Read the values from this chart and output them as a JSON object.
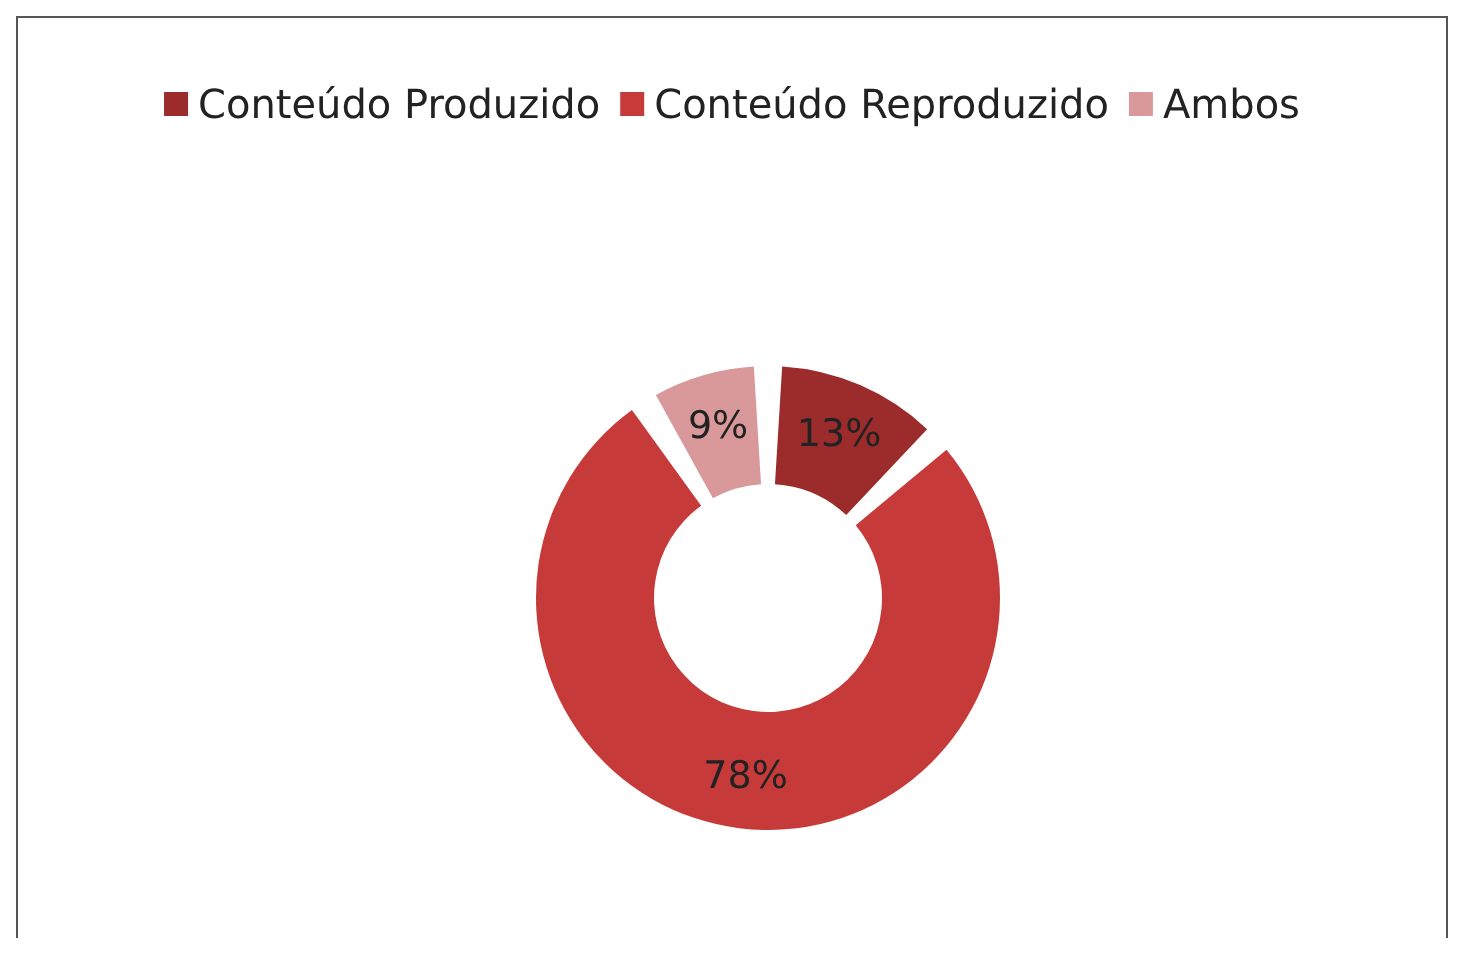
{
  "chart_data": {
    "type": "donut",
    "categories": [
      "Conteúdo Produzido",
      "Conteúdo Reproduzido",
      "Ambos"
    ],
    "values": [
      13,
      78,
      9
    ],
    "colors": [
      "#9c2b2b",
      "#c73a3a",
      "#d9999a"
    ],
    "value_labels": [
      "13%",
      "78%",
      "9%"
    ],
    "legend": "top"
  }
}
